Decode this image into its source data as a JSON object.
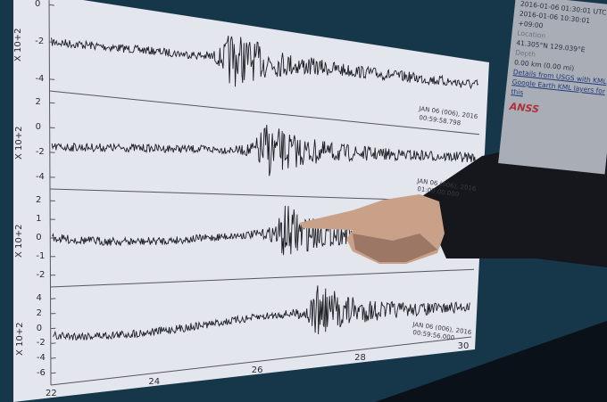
{
  "seismogram": {
    "scale_label": "X 10+2",
    "panels": [
      {
        "y_ticks": [
          "0",
          "-2",
          "-4"
        ],
        "annotation": [
          "JAN 06 (006), 2016",
          "00:59:58.798"
        ]
      },
      {
        "y_ticks": [
          "2",
          "0",
          "-2",
          "-4"
        ],
        "annotation": [
          "JAN 06 (006), 2016",
          "01:00:00.000"
        ]
      },
      {
        "y_ticks": [
          "2",
          "1",
          "0",
          "-1",
          "-2"
        ],
        "annotation": []
      },
      {
        "y_ticks": [
          "4",
          "2",
          "0",
          "-2",
          "-4",
          "-6"
        ],
        "annotation": [
          "JAN 06 (006), 2016",
          "00:59:56.000"
        ]
      }
    ],
    "x_ticks": [
      "22",
      "24",
      "26",
      "28",
      "30"
    ]
  },
  "info_panel": {
    "time_utc": "2016-01-06 01:30:01 UTC",
    "time_local": "2016-01-06 10:30:01 +09:00",
    "location_label": "Location",
    "location": "41.305°N 129.039°E",
    "depth_label": "Depth",
    "depth": "0.00 km (0.00 mi)",
    "link": "Details from USGS with KML Google Earth KML layers for this",
    "logo": "ANSS"
  },
  "colors": {
    "screen": "#e4e6ee",
    "trace": "#1d1d22",
    "map": "#0f2a3a",
    "sleeve": "#15171c",
    "skin": "#c9a189"
  }
}
